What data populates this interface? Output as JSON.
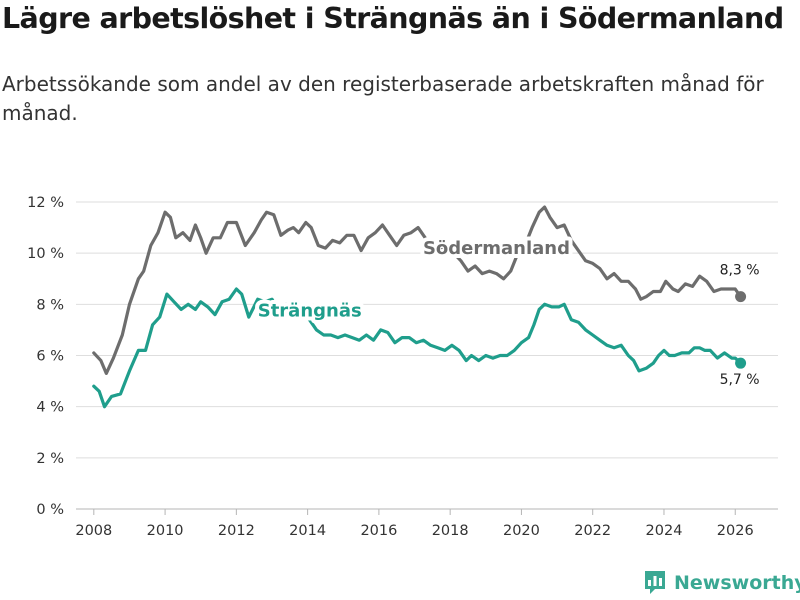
{
  "header": {
    "title": "Lägre arbetslöshet i Strängnäs än i Södermanland",
    "subtitle": "Arbetssökande som andel av den registerbaserade arbetskraften månad för månad."
  },
  "brand": {
    "name": "Newsworthy",
    "color": "#3aa893"
  },
  "chart_data": {
    "type": "line",
    "title": "Lägre arbetslöshet i Strängnäs än i Södermanland",
    "xlabel": "",
    "ylabel": "",
    "xlim": [
      2007.5,
      2027.2
    ],
    "ylim": [
      0,
      12
    ],
    "x_ticks": [
      "2008",
      "2010",
      "2012",
      "2014",
      "2016",
      "2018",
      "2020",
      "2022",
      "2024",
      "2026"
    ],
    "y_ticks": [
      "0 %",
      "2 %",
      "4 %",
      "6 %",
      "8 %",
      "10 %",
      "12 %"
    ],
    "grid": true,
    "series": [
      {
        "name": "Södermanland",
        "color": "#6d6d6d",
        "last_label": "8,3 %",
        "points": [
          [
            2008.0,
            6.1
          ],
          [
            2008.2,
            5.8
          ],
          [
            2008.35,
            5.3
          ],
          [
            2008.55,
            5.9
          ],
          [
            2008.8,
            6.8
          ],
          [
            2009.0,
            8.0
          ],
          [
            2009.25,
            9.0
          ],
          [
            2009.4,
            9.3
          ],
          [
            2009.6,
            10.3
          ],
          [
            2009.8,
            10.8
          ],
          [
            2010.0,
            11.6
          ],
          [
            2010.15,
            11.4
          ],
          [
            2010.3,
            10.6
          ],
          [
            2010.5,
            10.8
          ],
          [
            2010.7,
            10.5
          ],
          [
            2010.85,
            11.1
          ],
          [
            2011.0,
            10.6
          ],
          [
            2011.15,
            10.0
          ],
          [
            2011.35,
            10.6
          ],
          [
            2011.55,
            10.6
          ],
          [
            2011.75,
            11.2
          ],
          [
            2012.0,
            11.2
          ],
          [
            2012.25,
            10.3
          ],
          [
            2012.5,
            10.8
          ],
          [
            2012.7,
            11.3
          ],
          [
            2012.85,
            11.6
          ],
          [
            2013.05,
            11.5
          ],
          [
            2013.25,
            10.7
          ],
          [
            2013.45,
            10.9
          ],
          [
            2013.6,
            11.0
          ],
          [
            2013.75,
            10.8
          ],
          [
            2013.95,
            11.2
          ],
          [
            2014.1,
            11.0
          ],
          [
            2014.3,
            10.3
          ],
          [
            2014.5,
            10.2
          ],
          [
            2014.7,
            10.5
          ],
          [
            2014.9,
            10.4
          ],
          [
            2015.1,
            10.7
          ],
          [
            2015.3,
            10.7
          ],
          [
            2015.5,
            10.1
          ],
          [
            2015.7,
            10.6
          ],
          [
            2015.9,
            10.8
          ],
          [
            2016.1,
            11.1
          ],
          [
            2016.3,
            10.7
          ],
          [
            2016.5,
            10.3
          ],
          [
            2016.7,
            10.7
          ],
          [
            2016.9,
            10.8
          ],
          [
            2017.1,
            11.0
          ],
          [
            2017.3,
            10.6
          ],
          [
            2017.5,
            10.2
          ],
          [
            2017.7,
            10.2
          ],
          [
            2017.9,
            10.3
          ],
          [
            2018.1,
            10.0
          ],
          [
            2018.3,
            9.7
          ],
          [
            2018.5,
            9.3
          ],
          [
            2018.7,
            9.5
          ],
          [
            2018.9,
            9.2
          ],
          [
            2019.1,
            9.3
          ],
          [
            2019.3,
            9.2
          ],
          [
            2019.5,
            9.0
          ],
          [
            2019.7,
            9.3
          ],
          [
            2019.9,
            10.0
          ],
          [
            2020.1,
            10.3
          ],
          [
            2020.3,
            11.0
          ],
          [
            2020.5,
            11.6
          ],
          [
            2020.65,
            11.8
          ],
          [
            2020.8,
            11.4
          ],
          [
            2021.0,
            11.0
          ],
          [
            2021.2,
            11.1
          ],
          [
            2021.4,
            10.5
          ],
          [
            2021.6,
            10.1
          ],
          [
            2021.8,
            9.7
          ],
          [
            2022.0,
            9.6
          ],
          [
            2022.2,
            9.4
          ],
          [
            2022.4,
            9.0
          ],
          [
            2022.6,
            9.2
          ],
          [
            2022.8,
            8.9
          ],
          [
            2023.0,
            8.9
          ],
          [
            2023.2,
            8.6
          ],
          [
            2023.35,
            8.2
          ],
          [
            2023.5,
            8.3
          ],
          [
            2023.7,
            8.5
          ],
          [
            2023.9,
            8.5
          ],
          [
            2024.05,
            8.9
          ],
          [
            2024.25,
            8.6
          ],
          [
            2024.4,
            8.5
          ],
          [
            2024.6,
            8.8
          ],
          [
            2024.8,
            8.7
          ],
          [
            2025.0,
            9.1
          ],
          [
            2025.2,
            8.9
          ],
          [
            2025.4,
            8.5
          ],
          [
            2025.6,
            8.6
          ],
          [
            2025.8,
            8.6
          ],
          [
            2026.0,
            8.6
          ],
          [
            2026.15,
            8.3
          ]
        ]
      },
      {
        "name": "Strängnäs",
        "color": "#1f9e8c",
        "last_label": "5,7 %",
        "points": [
          [
            2008.0,
            4.8
          ],
          [
            2008.15,
            4.6
          ],
          [
            2008.3,
            4.0
          ],
          [
            2008.5,
            4.4
          ],
          [
            2008.75,
            4.5
          ],
          [
            2009.0,
            5.4
          ],
          [
            2009.25,
            6.2
          ],
          [
            2009.45,
            6.2
          ],
          [
            2009.65,
            7.2
          ],
          [
            2009.85,
            7.5
          ],
          [
            2010.05,
            8.4
          ],
          [
            2010.25,
            8.1
          ],
          [
            2010.45,
            7.8
          ],
          [
            2010.65,
            8.0
          ],
          [
            2010.85,
            7.8
          ],
          [
            2011.0,
            8.1
          ],
          [
            2011.2,
            7.9
          ],
          [
            2011.4,
            7.6
          ],
          [
            2011.6,
            8.1
          ],
          [
            2011.8,
            8.2
          ],
          [
            2012.0,
            8.6
          ],
          [
            2012.15,
            8.4
          ],
          [
            2012.35,
            7.5
          ],
          [
            2012.6,
            8.2
          ],
          [
            2012.8,
            8.1
          ],
          [
            2013.0,
            8.2
          ],
          [
            2013.2,
            7.7
          ],
          [
            2013.4,
            8.0
          ],
          [
            2013.6,
            7.9
          ],
          [
            2013.8,
            7.7
          ],
          [
            2014.0,
            7.5
          ],
          [
            2014.25,
            7.0
          ],
          [
            2014.45,
            6.8
          ],
          [
            2014.65,
            6.8
          ],
          [
            2014.85,
            6.7
          ],
          [
            2015.05,
            6.8
          ],
          [
            2015.25,
            6.7
          ],
          [
            2015.45,
            6.6
          ],
          [
            2015.65,
            6.8
          ],
          [
            2015.85,
            6.6
          ],
          [
            2016.05,
            7.0
          ],
          [
            2016.25,
            6.9
          ],
          [
            2016.45,
            6.5
          ],
          [
            2016.65,
            6.7
          ],
          [
            2016.85,
            6.7
          ],
          [
            2017.05,
            6.5
          ],
          [
            2017.25,
            6.6
          ],
          [
            2017.45,
            6.4
          ],
          [
            2017.65,
            6.3
          ],
          [
            2017.85,
            6.2
          ],
          [
            2018.05,
            6.4
          ],
          [
            2018.25,
            6.2
          ],
          [
            2018.45,
            5.8
          ],
          [
            2018.6,
            6.0
          ],
          [
            2018.8,
            5.8
          ],
          [
            2019.0,
            6.0
          ],
          [
            2019.2,
            5.9
          ],
          [
            2019.4,
            6.0
          ],
          [
            2019.6,
            6.0
          ],
          [
            2019.8,
            6.2
          ],
          [
            2020.0,
            6.5
          ],
          [
            2020.2,
            6.7
          ],
          [
            2020.35,
            7.2
          ],
          [
            2020.5,
            7.8
          ],
          [
            2020.65,
            8.0
          ],
          [
            2020.85,
            7.9
          ],
          [
            2021.05,
            7.9
          ],
          [
            2021.2,
            8.0
          ],
          [
            2021.4,
            7.4
          ],
          [
            2021.6,
            7.3
          ],
          [
            2021.8,
            7.0
          ],
          [
            2022.0,
            6.8
          ],
          [
            2022.2,
            6.6
          ],
          [
            2022.4,
            6.4
          ],
          [
            2022.6,
            6.3
          ],
          [
            2022.8,
            6.4
          ],
          [
            2023.0,
            6.0
          ],
          [
            2023.15,
            5.8
          ],
          [
            2023.3,
            5.4
          ],
          [
            2023.5,
            5.5
          ],
          [
            2023.7,
            5.7
          ],
          [
            2023.85,
            6.0
          ],
          [
            2024.0,
            6.2
          ],
          [
            2024.15,
            6.0
          ],
          [
            2024.3,
            6.0
          ],
          [
            2024.5,
            6.1
          ],
          [
            2024.7,
            6.1
          ],
          [
            2024.85,
            6.3
          ],
          [
            2025.0,
            6.3
          ],
          [
            2025.15,
            6.2
          ],
          [
            2025.3,
            6.2
          ],
          [
            2025.5,
            5.9
          ],
          [
            2025.7,
            6.1
          ],
          [
            2025.9,
            5.9
          ],
          [
            2026.0,
            5.9
          ],
          [
            2026.15,
            5.7
          ]
        ]
      }
    ]
  }
}
